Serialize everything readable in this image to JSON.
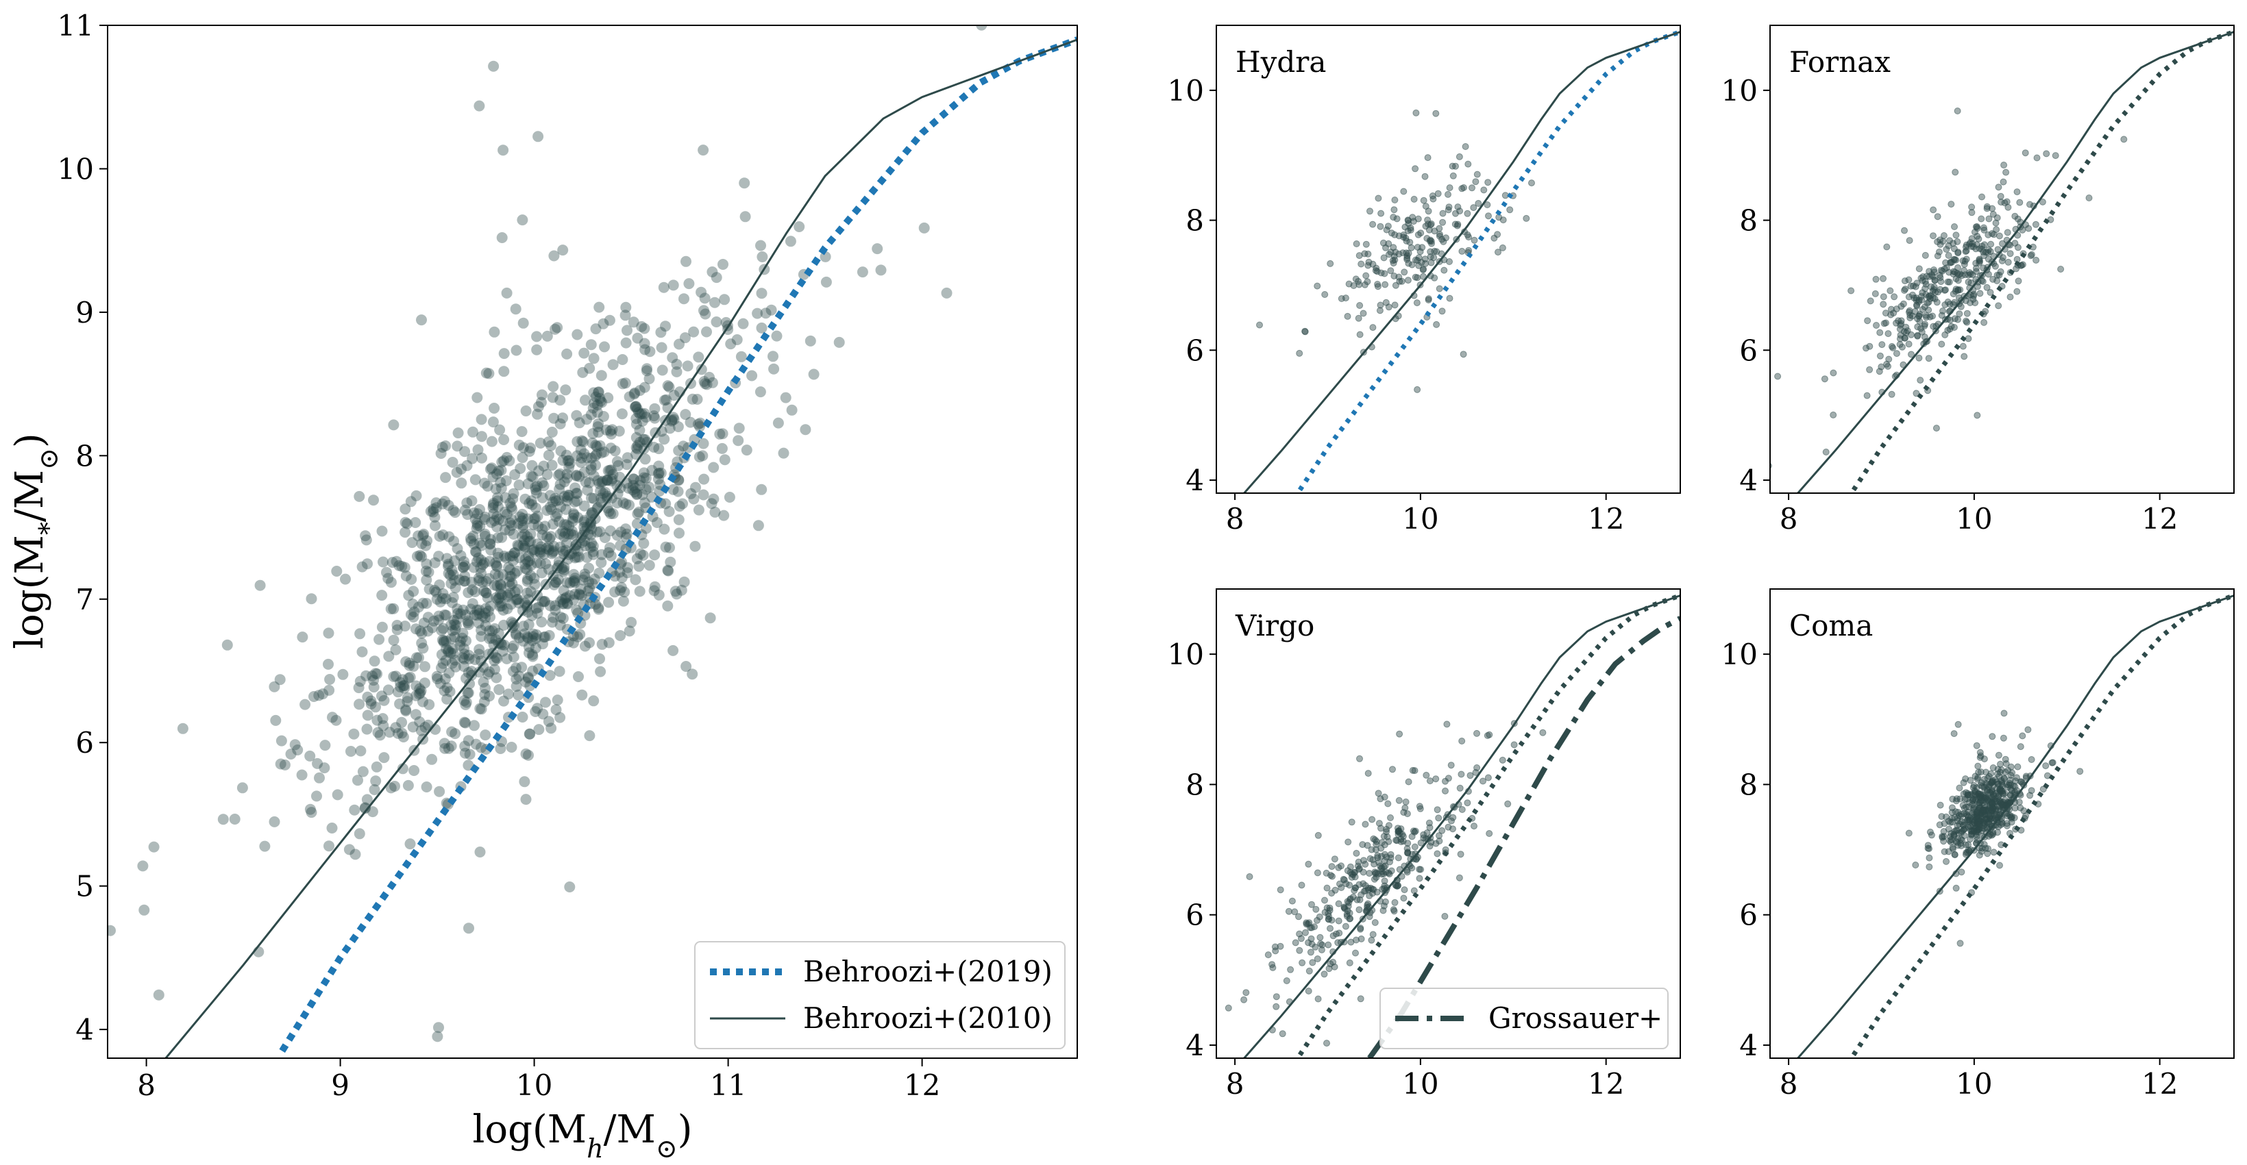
{
  "colors": {
    "scatter": "#2e4a4a",
    "b2010": "#2e4a4a",
    "b2019_main": "#1f77b4",
    "b2019_small": "#2e4a4a",
    "grossauer": "#2e4a4a",
    "b2019_hydra": "#1f77b4"
  },
  "chart_data": [
    {
      "id": "main",
      "type": "scatter",
      "title": "",
      "xlabel": "log(M_h/M_⊙)",
      "ylabel": "log(M_*/M_⊙)",
      "xlim": [
        7.8,
        12.8
      ],
      "ylim": [
        3.8,
        11.0
      ],
      "xticks": [
        "8",
        "9",
        "10",
        "11",
        "12"
      ],
      "yticks": [
        "4",
        "5",
        "6",
        "7",
        "8",
        "9",
        "10",
        "11"
      ],
      "grid": false,
      "legend": {
        "placement": "lower-right",
        "entries": [
          "Behroozi+(2019)",
          "Behroozi+(2010)"
        ]
      },
      "scatter": {
        "n": 1400,
        "cx": 10.0,
        "cy": 7.35,
        "slope": 1.05,
        "spread": 0.5,
        "scatter": 0.55,
        "seed": 11
      },
      "series": [
        {
          "name": "Behroozi+(2019)",
          "style": "dotted",
          "x": [
            8.7,
            9.0,
            9.5,
            10.0,
            10.5,
            11.0,
            11.5,
            12.0,
            12.3,
            12.5,
            12.8
          ],
          "y": [
            3.85,
            4.5,
            5.45,
            6.4,
            7.4,
            8.45,
            9.45,
            10.25,
            10.6,
            10.75,
            10.9
          ]
        },
        {
          "name": "Behroozi+(2010)",
          "style": "solid",
          "x": [
            8.1,
            8.5,
            9.0,
            9.5,
            10.0,
            10.5,
            11.0,
            11.3,
            11.5,
            11.8,
            12.0,
            12.3,
            12.5,
            12.8
          ],
          "y": [
            3.8,
            4.45,
            5.3,
            6.15,
            7.0,
            7.9,
            8.9,
            9.55,
            9.95,
            10.35,
            10.5,
            10.65,
            10.75,
            10.9
          ]
        }
      ]
    },
    {
      "id": "hydra",
      "type": "scatter",
      "title": "Hydra",
      "xlim": [
        7.8,
        12.8
      ],
      "ylim": [
        3.8,
        11.0
      ],
      "xticks": [
        "8",
        "10",
        "12"
      ],
      "yticks": [
        "4",
        "6",
        "8",
        "10"
      ],
      "scatter": {
        "n": 230,
        "cx": 9.9,
        "cy": 7.5,
        "slope": 0.75,
        "spread": 0.45,
        "scatter": 0.45,
        "seed": 23
      },
      "series": [
        {
          "name": "Behroozi+(2019)",
          "style": "dotted",
          "color": "blue",
          "x": [
            8.7,
            9.0,
            9.5,
            10.0,
            10.5,
            11.0,
            11.5,
            12.0,
            12.3,
            12.5,
            12.8
          ],
          "y": [
            3.85,
            4.5,
            5.45,
            6.4,
            7.4,
            8.45,
            9.45,
            10.25,
            10.6,
            10.75,
            10.9
          ]
        },
        {
          "name": "Behroozi+(2010)",
          "style": "solid",
          "x": [
            8.1,
            8.5,
            9.0,
            9.5,
            10.0,
            10.5,
            11.0,
            11.3,
            11.5,
            11.8,
            12.0,
            12.3,
            12.5,
            12.8
          ],
          "y": [
            3.8,
            4.45,
            5.3,
            6.15,
            7.0,
            7.9,
            8.9,
            9.55,
            9.95,
            10.35,
            10.5,
            10.65,
            10.75,
            10.9
          ]
        }
      ]
    },
    {
      "id": "fornax",
      "type": "scatter",
      "title": "Fornax",
      "xlim": [
        7.8,
        12.8
      ],
      "ylim": [
        3.8,
        11.0
      ],
      "xticks": [
        "8",
        "10",
        "12"
      ],
      "yticks": [
        "4",
        "6",
        "8",
        "10"
      ],
      "scatter": {
        "n": 420,
        "cx": 9.8,
        "cy": 7.1,
        "slope": 1.05,
        "spread": 0.45,
        "scatter": 0.45,
        "seed": 37
      },
      "series": [
        {
          "name": "Behroozi+(2019)",
          "style": "dotted",
          "x": [
            8.7,
            9.0,
            9.5,
            10.0,
            10.5,
            11.0,
            11.5,
            12.0,
            12.3,
            12.5,
            12.8
          ],
          "y": [
            3.85,
            4.5,
            5.45,
            6.4,
            7.4,
            8.45,
            9.45,
            10.25,
            10.6,
            10.75,
            10.9
          ]
        },
        {
          "name": "Behroozi+(2010)",
          "style": "solid",
          "x": [
            8.1,
            8.5,
            9.0,
            9.5,
            10.0,
            10.5,
            11.0,
            11.3,
            11.5,
            11.8,
            12.0,
            12.3,
            12.5,
            12.8
          ],
          "y": [
            3.8,
            4.45,
            5.3,
            6.15,
            7.0,
            7.9,
            8.9,
            9.55,
            9.95,
            10.35,
            10.5,
            10.65,
            10.75,
            10.9
          ]
        }
      ]
    },
    {
      "id": "virgo",
      "type": "scatter",
      "title": "Virgo",
      "xlim": [
        7.8,
        12.8
      ],
      "ylim": [
        3.8,
        11.0
      ],
      "xticks": [
        "8",
        "10",
        "12"
      ],
      "yticks": [
        "4",
        "6",
        "8",
        "10"
      ],
      "legend": {
        "placement": "lower-right",
        "entries": [
          "Grossauer+"
        ]
      },
      "scatter": {
        "n": 380,
        "cx": 9.5,
        "cy": 6.6,
        "slope": 1.3,
        "spread": 0.55,
        "scatter": 0.45,
        "seed": 53
      },
      "series": [
        {
          "name": "Behroozi+(2019)",
          "style": "dotted",
          "x": [
            8.7,
            9.0,
            9.5,
            10.0,
            10.5,
            11.0,
            11.5,
            12.0,
            12.3,
            12.5,
            12.8
          ],
          "y": [
            3.85,
            4.5,
            5.45,
            6.4,
            7.4,
            8.45,
            9.45,
            10.25,
            10.6,
            10.75,
            10.9
          ]
        },
        {
          "name": "Behroozi+(2010)",
          "style": "solid",
          "x": [
            8.1,
            8.5,
            9.0,
            9.5,
            10.0,
            10.5,
            11.0,
            11.3,
            11.5,
            11.8,
            12.0,
            12.3,
            12.5,
            12.8
          ],
          "y": [
            3.8,
            4.45,
            5.3,
            6.15,
            7.0,
            7.9,
            8.9,
            9.55,
            9.95,
            10.35,
            10.5,
            10.65,
            10.75,
            10.9
          ]
        },
        {
          "name": "Grossauer+",
          "style": "dashdot",
          "x": [
            9.45,
            9.8,
            10.2,
            10.6,
            11.0,
            11.4,
            11.8,
            12.1,
            12.4,
            12.6,
            12.8
          ],
          "y": [
            3.8,
            4.5,
            5.45,
            6.4,
            7.4,
            8.4,
            9.3,
            9.85,
            10.2,
            10.4,
            10.55
          ]
        }
      ]
    },
    {
      "id": "coma",
      "type": "scatter",
      "title": "Coma",
      "xlim": [
        7.8,
        12.8
      ],
      "ylim": [
        3.8,
        11.0
      ],
      "xticks": [
        "8",
        "10",
        "12"
      ],
      "yticks": [
        "4",
        "6",
        "8",
        "10"
      ],
      "scatter": {
        "n": 520,
        "cx": 10.1,
        "cy": 7.6,
        "slope": 0.85,
        "spread": 0.22,
        "scatter": 0.28,
        "seed": 71
      },
      "series": [
        {
          "name": "Behroozi+(2019)",
          "style": "dotted",
          "x": [
            8.7,
            9.0,
            9.5,
            10.0,
            10.5,
            11.0,
            11.5,
            12.0,
            12.3,
            12.5,
            12.8
          ],
          "y": [
            3.85,
            4.5,
            5.45,
            6.4,
            7.4,
            8.45,
            9.45,
            10.25,
            10.6,
            10.75,
            10.9
          ]
        },
        {
          "name": "Behroozi+(2010)",
          "style": "solid",
          "x": [
            8.1,
            8.5,
            9.0,
            9.5,
            10.0,
            10.5,
            11.0,
            11.3,
            11.5,
            11.8,
            12.0,
            12.3,
            12.5,
            12.8
          ],
          "y": [
            3.8,
            4.45,
            5.3,
            6.15,
            7.0,
            7.9,
            8.9,
            9.55,
            9.95,
            10.35,
            10.5,
            10.65,
            10.75,
            10.9
          ]
        }
      ]
    }
  ]
}
